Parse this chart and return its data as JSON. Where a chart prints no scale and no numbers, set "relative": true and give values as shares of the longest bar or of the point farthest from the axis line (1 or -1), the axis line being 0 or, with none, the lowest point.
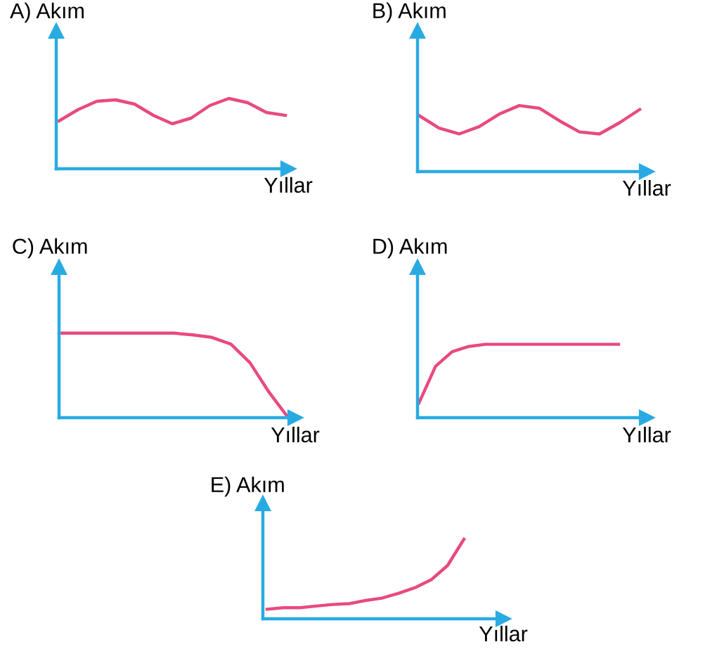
{
  "chart_data": [
    {
      "type": "line",
      "ylabel": "A) Akım",
      "xlabel": "Yıllar",
      "relative": true,
      "tick_labels": false,
      "categories": [
        null,
        null,
        null,
        null,
        null,
        null,
        null,
        null,
        null,
        null,
        null,
        null,
        null
      ],
      "series": [
        {
          "color": "#e84a7f",
          "values": [
            0.68,
            0.84,
            0.96,
            0.98,
            0.92,
            0.76,
            0.64,
            0.72,
            0.9,
            1,
            0.94,
            0.8,
            0.76
          ]
        }
      ]
    },
    {
      "type": "line",
      "ylabel": "B) Akım",
      "xlabel": "Yıllar",
      "relative": true,
      "tick_labels": false,
      "categories": [
        null,
        null,
        null,
        null,
        null,
        null,
        null,
        null,
        null,
        null,
        null,
        null
      ],
      "series": [
        {
          "color": "#e84a7f",
          "values": [
            0.85,
            0.66,
            0.57,
            0.68,
            0.87,
            1,
            0.96,
            0.77,
            0.6,
            0.57,
            0.74,
            0.94
          ]
        }
      ]
    },
    {
      "type": "line",
      "ylabel": "C) Akım",
      "xlabel": "Yıllar",
      "relative": true,
      "tick_labels": false,
      "categories": [
        null,
        null,
        null,
        null,
        null,
        null,
        null,
        null,
        null,
        null,
        null,
        null,
        null
      ],
      "series": [
        {
          "color": "#e84a7f",
          "values": [
            1,
            1,
            1,
            1,
            1,
            1,
            1,
            0.98,
            0.95,
            0.87,
            0.65,
            0.3,
            0
          ]
        }
      ]
    },
    {
      "type": "line",
      "ylabel": "D) Akım",
      "xlabel": "Yıllar",
      "relative": true,
      "tick_labels": false,
      "categories": [
        null,
        null,
        null,
        null,
        null,
        null,
        null,
        null,
        null,
        null,
        null,
        null,
        null
      ],
      "series": [
        {
          "color": "#e84a7f",
          "values": [
            0.2,
            0.7,
            0.9,
            0.97,
            1,
            1,
            1,
            1,
            1,
            1,
            1,
            1,
            1
          ]
        }
      ]
    },
    {
      "type": "line",
      "ylabel": "E) Akım",
      "xlabel": "Yıllar",
      "relative": true,
      "tick_labels": false,
      "categories": [
        null,
        null,
        null,
        null,
        null,
        null,
        null,
        null,
        null,
        null,
        null,
        null,
        null
      ],
      "series": [
        {
          "color": "#e84a7f",
          "values": [
            0.12,
            0.14,
            0.14,
            0.16,
            0.18,
            0.19,
            0.23,
            0.26,
            0.32,
            0.39,
            0.49,
            0.67,
            1
          ]
        }
      ]
    }
  ]
}
